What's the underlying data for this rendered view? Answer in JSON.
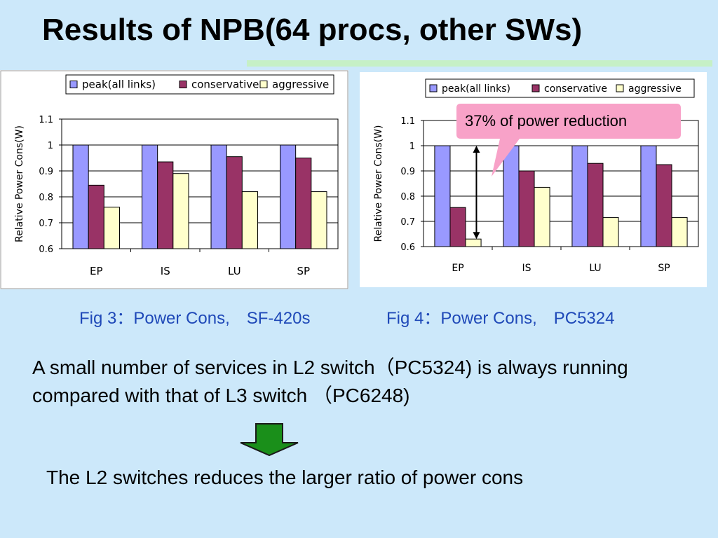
{
  "slide": {
    "title": "Results of NPB(64 procs, other SWs)",
    "body": "A small number of services in L2 switch（PC5324) is always running compared with that of L3 switch （PC6248)",
    "conclusion": "The L2 switches reduces the larger ratio of power cons",
    "callout": "37% of power reduction",
    "colors": {
      "background": "#cce8fa",
      "title_rule": "#c6f0c6",
      "caption": "#1f49b8",
      "callout_fill": "#f8a2c8",
      "arrow_fill": "#1a8f1a",
      "peak": "#9999ff",
      "conservative": "#993366",
      "aggressive": "#ffffcc"
    },
    "icons": {
      "annotation": "double-headed-arrow",
      "transition": "down-arrow-icon"
    }
  },
  "chart_data": [
    {
      "type": "bar",
      "caption": "Fig 3：Power Cons,　SF-420s",
      "ylabel": "Relative Power Cons(W)",
      "xlabel": "",
      "ylim": [
        0.6,
        1.1
      ],
      "yticks": [
        "0.6",
        "0.7",
        "0.8",
        "0.9",
        "1",
        "1.1"
      ],
      "grid": true,
      "legend_position": "top",
      "categories": [
        "EP",
        "IS",
        "LU",
        "SP"
      ],
      "series": [
        {
          "name": "peak(all links)",
          "values": [
            1.0,
            1.0,
            1.0,
            1.0
          ]
        },
        {
          "name": "conservative",
          "values": [
            0.845,
            0.935,
            0.955,
            0.95
          ]
        },
        {
          "name": "aggressive",
          "values": [
            0.76,
            0.89,
            0.82,
            0.82
          ]
        }
      ]
    },
    {
      "type": "bar",
      "caption": "Fig 4：Power Cons,　PC5324",
      "ylabel": "Relative Power Cons(W)",
      "xlabel": "",
      "ylim": [
        0.6,
        1.1
      ],
      "yticks": [
        "0.6",
        "0.7",
        "0.8",
        "0.9",
        "1",
        "1.1"
      ],
      "grid": true,
      "legend_position": "top",
      "categories": [
        "EP",
        "IS",
        "LU",
        "SP"
      ],
      "series": [
        {
          "name": "peak(all links)",
          "values": [
            1.0,
            1.0,
            1.0,
            1.0
          ]
        },
        {
          "name": "conservative",
          "values": [
            0.755,
            0.9,
            0.93,
            0.925
          ]
        },
        {
          "name": "aggressive",
          "values": [
            0.63,
            0.835,
            0.715,
            0.715
          ]
        }
      ]
    }
  ]
}
